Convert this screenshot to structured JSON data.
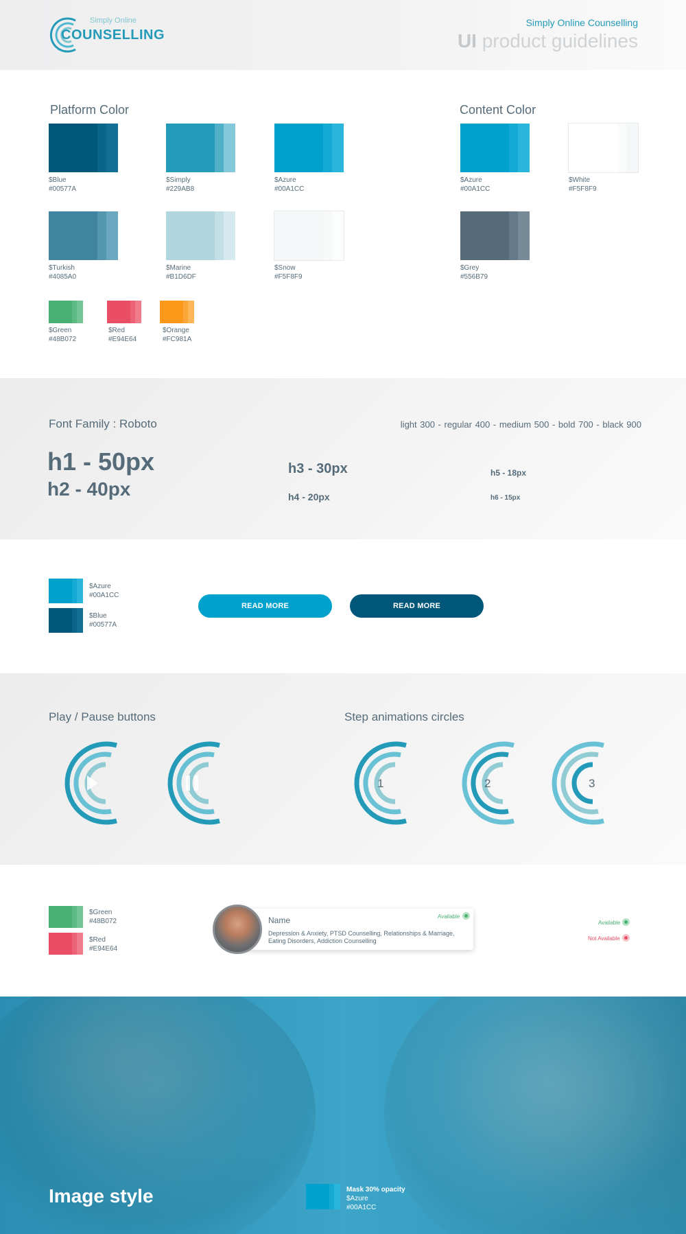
{
  "header": {
    "logo_small": "Simply Online",
    "logo_big": "COUNSELLING",
    "subtitle": "Simply Online Counselling",
    "title_bold": "UI",
    "title_rest": " product guidelines"
  },
  "platform_color": {
    "title": "Platform Color",
    "swatches": [
      {
        "name": "$Blue",
        "hex": "#00577A"
      },
      {
        "name": "$Simply",
        "hex": "#229AB8"
      },
      {
        "name": "$Azure",
        "hex": "#00A1CC"
      },
      {
        "name": "$Turkish",
        "hex": "#4085A0"
      },
      {
        "name": "$Marine",
        "hex": "#B1D6DF"
      },
      {
        "name": "$Snow",
        "hex": "#F5F8F9"
      },
      {
        "name": "$Green",
        "hex": "#48B072"
      },
      {
        "name": "$Red",
        "hex": "#E94E64"
      },
      {
        "name": "$Orange",
        "hex": "#FC981A"
      }
    ]
  },
  "content_color": {
    "title": "Content Color",
    "swatches": [
      {
        "name": "$Azure",
        "hex": "#00A1CC"
      },
      {
        "name": "$White",
        "hex": "#F5F8F9"
      },
      {
        "name": "$Grey",
        "hex": "#556B79"
      }
    ]
  },
  "typography": {
    "font_family": "Font Family : Roboto",
    "weights": "light 300   -   regular 400  -   medium 500   -   bold 700   -   black 900",
    "h1": "h1 - 50px",
    "h2": "h2 - 40px",
    "h3": "h3 - 30px",
    "h4": "h4 - 20px",
    "h5": "h5 - 18px",
    "h6": "h6 - 15px"
  },
  "buttons_section": {
    "swatches": [
      {
        "name": "$Azure",
        "hex": "#00A1CC"
      },
      {
        "name": "$Blue",
        "hex": "#00577A"
      }
    ],
    "button_azure": "READ MORE",
    "button_blue": "READ MORE"
  },
  "media_section": {
    "play_pause_title": "Play / Pause buttons",
    "steps_title": "Step animations circles",
    "steps": [
      "1",
      "2",
      "3"
    ]
  },
  "status_section": {
    "swatches": [
      {
        "name": "$Green",
        "hex": "#48B072"
      },
      {
        "name": "$Red",
        "hex": "#E94E64"
      }
    ],
    "card": {
      "name": "Name",
      "status": "Available",
      "description": "Depression & Anxiety, PTSD Counselling, Relationships & Marriage, Eating Disorders, Addiction Counselling"
    },
    "legend_available": "Available",
    "legend_not_available": "Not Available"
  },
  "image_style": {
    "title": "Image style",
    "mask_line": "Mask 30% opacity",
    "mask_name": "$Azure",
    "mask_hex": "#00A1CC"
  }
}
